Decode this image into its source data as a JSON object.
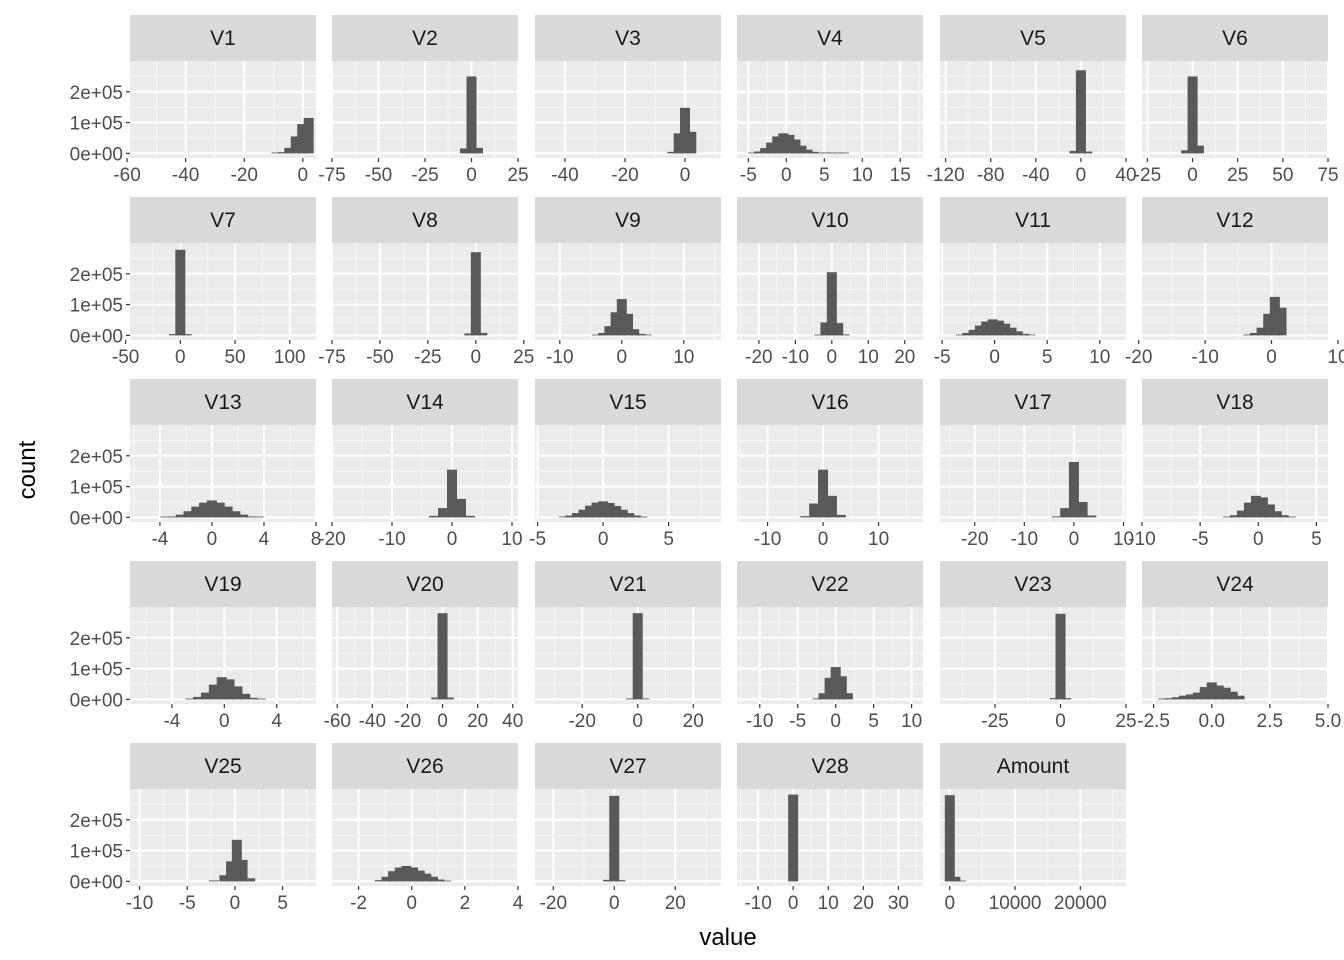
{
  "chart_data": {
    "type": "bar",
    "xlabel": "value",
    "ylabel": "count",
    "y_ticks": [
      {
        "value": 0,
        "label": "0e+00"
      },
      {
        "value": 100000,
        "label": "1e+05"
      },
      {
        "value": 200000,
        "label": "2e+05"
      }
    ],
    "ylim": [
      -15000,
      300000
    ],
    "colors": {
      "bar": "#595959",
      "panel": "#ebebeb",
      "grid_major": "#ffffff",
      "strip": "#d9d9d9"
    },
    "panels": [
      {
        "name": "V1",
        "xlim": [
          -59,
          4.5
        ],
        "ticks": [
          -60,
          -40,
          -20,
          0
        ],
        "bars": [
          [
            -9,
            1000
          ],
          [
            -6.8,
            4000
          ],
          [
            -4.6,
            18000
          ],
          [
            -2.4,
            55000
          ],
          [
            -0.2,
            95000
          ],
          [
            2,
            115000
          ]
        ]
      },
      {
        "name": "V2",
        "xlim": [
          -75,
          25
        ],
        "ticks": [
          -75,
          -50,
          -25,
          0,
          25
        ],
        "bars": [
          [
            -3.5,
            16000
          ],
          [
            0,
            250000
          ],
          [
            3.5,
            18000
          ]
        ]
      },
      {
        "name": "V3",
        "xlim": [
          -50,
          12
        ],
        "ticks": [
          -40,
          -20,
          0
        ],
        "bars": [
          [
            -4.2,
            5000
          ],
          [
            -2.1,
            65000
          ],
          [
            0,
            148000
          ],
          [
            2.1,
            70000
          ]
        ]
      },
      {
        "name": "V4",
        "xlim": [
          -6.5,
          18
        ],
        "ticks": [
          -5,
          0,
          5,
          10,
          15
        ],
        "bars": [
          [
            -4.4,
            2000
          ],
          [
            -3.6,
            6000
          ],
          [
            -2.8,
            17000
          ],
          [
            -2.0,
            35000
          ],
          [
            -1.2,
            55000
          ],
          [
            -0.4,
            65000
          ],
          [
            0.4,
            60000
          ],
          [
            1.2,
            45000
          ],
          [
            2.0,
            25000
          ],
          [
            2.8,
            12000
          ],
          [
            3.6,
            5000
          ],
          [
            4.4,
            2000
          ],
          [
            5.2,
            800
          ],
          [
            6.0,
            300
          ],
          [
            6.8,
            150
          ],
          [
            7.6,
            60
          ]
        ]
      },
      {
        "name": "V5",
        "xlim": [
          -125,
          40
        ],
        "ticks": [
          -120,
          -80,
          -40,
          0,
          40
        ],
        "bars": [
          [
            -5.7,
            8000
          ],
          [
            0,
            270000
          ],
          [
            5.7,
            6000
          ]
        ]
      },
      {
        "name": "V6",
        "xlim": [
          -28,
          75
        ],
        "ticks": [
          -25,
          0,
          25,
          50,
          75
        ],
        "bars": [
          [
            -3.5,
            10000
          ],
          [
            0,
            250000
          ],
          [
            3.5,
            25000
          ]
        ]
      },
      {
        "name": "V7",
        "xlim": [
          -46,
          124
        ],
        "ticks": [
          -50,
          0,
          50,
          100
        ],
        "bars": [
          [
            -5.8,
            4000
          ],
          [
            0,
            278000
          ],
          [
            5.8,
            4000
          ]
        ]
      },
      {
        "name": "V8",
        "xlim": [
          -75,
          22
        ],
        "ticks": [
          -75,
          -50,
          -25,
          0,
          25
        ],
        "bars": [
          [
            -3.4,
            6000
          ],
          [
            0,
            270000
          ],
          [
            3.4,
            8000
          ]
        ]
      },
      {
        "name": "V9",
        "xlim": [
          -14,
          16
        ],
        "ticks": [
          -10,
          0,
          10
        ],
        "bars": [
          [
            -4,
            2000
          ],
          [
            -3,
            8000
          ],
          [
            -2,
            30000
          ],
          [
            -1,
            75000
          ],
          [
            0,
            118000
          ],
          [
            1,
            70000
          ],
          [
            2,
            20000
          ],
          [
            3,
            5000
          ],
          [
            4,
            1000
          ]
        ]
      },
      {
        "name": "V10",
        "xlim": [
          -26,
          25
        ],
        "ticks": [
          -20,
          -10,
          0,
          10,
          20
        ],
        "bars": [
          [
            -3.5,
            2000
          ],
          [
            -1.75,
            42000
          ],
          [
            0,
            205000
          ],
          [
            1.75,
            40000
          ],
          [
            3.5,
            3000
          ]
        ]
      },
      {
        "name": "V11",
        "xlim": [
          -5.2,
          12.5
        ],
        "ticks": [
          -5,
          0,
          5,
          10
        ],
        "bars": [
          [
            -3.2,
            2000
          ],
          [
            -2.6,
            8000
          ],
          [
            -2.0,
            18000
          ],
          [
            -1.4,
            32000
          ],
          [
            -0.8,
            45000
          ],
          [
            -0.2,
            52000
          ],
          [
            0.4,
            48000
          ],
          [
            1.0,
            38000
          ],
          [
            1.6,
            25000
          ],
          [
            2.2,
            13000
          ],
          [
            2.8,
            5000
          ],
          [
            3.4,
            1500
          ]
        ]
      },
      {
        "name": "V12",
        "xlim": [
          -19.5,
          8.5
        ],
        "ticks": [
          -20,
          -10,
          0,
          10
        ],
        "bars": [
          [
            -3.5,
            2000
          ],
          [
            -2.5,
            8000
          ],
          [
            -1.5,
            25000
          ],
          [
            -0.5,
            70000
          ],
          [
            0.5,
            125000
          ],
          [
            1.5,
            90000
          ]
        ]
      },
      {
        "name": "V13",
        "xlim": [
          -6.3,
          8
        ],
        "ticks": [
          -4,
          0,
          4,
          8
        ],
        "bars": [
          [
            -3.6,
            1000
          ],
          [
            -3.0,
            3000
          ],
          [
            -2.4,
            9000
          ],
          [
            -1.8,
            20000
          ],
          [
            -1.2,
            35000
          ],
          [
            -0.6,
            48000
          ],
          [
            0.0,
            55000
          ],
          [
            0.6,
            48000
          ],
          [
            1.2,
            35000
          ],
          [
            1.8,
            20000
          ],
          [
            2.4,
            9000
          ],
          [
            3.0,
            3000
          ],
          [
            3.6,
            1000
          ]
        ]
      },
      {
        "name": "V14",
        "xlim": [
          -20,
          11
        ],
        "ticks": [
          -20,
          -10,
          0,
          10
        ],
        "bars": [
          [
            -3,
            5000
          ],
          [
            -1.5,
            30000
          ],
          [
            0,
            155000
          ],
          [
            1.5,
            60000
          ],
          [
            3,
            5000
          ]
        ]
      },
      {
        "name": "V15",
        "xlim": [
          -5.2,
          9
        ],
        "ticks": [
          -5,
          0,
          5
        ],
        "bars": [
          [
            -3.0,
            2000
          ],
          [
            -2.5,
            6000
          ],
          [
            -2.0,
            14000
          ],
          [
            -1.5,
            25000
          ],
          [
            -1.0,
            38000
          ],
          [
            -0.5,
            48000
          ],
          [
            0.0,
            52000
          ],
          [
            0.5,
            47000
          ],
          [
            1.0,
            37000
          ],
          [
            1.5,
            25000
          ],
          [
            2.0,
            14000
          ],
          [
            2.5,
            6000
          ],
          [
            3.0,
            2000
          ]
        ]
      },
      {
        "name": "V16",
        "xlim": [
          -15.5,
          18
        ],
        "ticks": [
          -10,
          0,
          10
        ],
        "bars": [
          [
            -3.2,
            4000
          ],
          [
            -1.6,
            45000
          ],
          [
            0,
            155000
          ],
          [
            1.6,
            70000
          ],
          [
            3.2,
            8000
          ]
        ]
      },
      {
        "name": "V17",
        "xlim": [
          -27,
          10.5
        ],
        "ticks": [
          -20,
          -10,
          0,
          10
        ],
        "bars": [
          [
            -3.5,
            3000
          ],
          [
            -1.75,
            30000
          ],
          [
            0,
            180000
          ],
          [
            1.75,
            50000
          ],
          [
            3.5,
            6000
          ]
        ]
      },
      {
        "name": "V18",
        "xlim": [
          -10,
          6
        ],
        "ticks": [
          -10,
          -5,
          0,
          5
        ],
        "bars": [
          [
            -2.6,
            2000
          ],
          [
            -2.0,
            7000
          ],
          [
            -1.4,
            22000
          ],
          [
            -0.8,
            48000
          ],
          [
            -0.2,
            70000
          ],
          [
            0.4,
            65000
          ],
          [
            1.0,
            42000
          ],
          [
            1.6,
            20000
          ],
          [
            2.2,
            7000
          ],
          [
            2.8,
            2000
          ]
        ]
      },
      {
        "name": "V19",
        "xlim": [
          -7.2,
          7
        ],
        "ticks": [
          -4,
          0,
          4
        ],
        "bars": [
          [
            -2.6,
            2000
          ],
          [
            -2.0,
            8000
          ],
          [
            -1.4,
            22000
          ],
          [
            -0.8,
            48000
          ],
          [
            -0.2,
            72000
          ],
          [
            0.4,
            65000
          ],
          [
            1.0,
            42000
          ],
          [
            1.6,
            18000
          ],
          [
            2.2,
            5000
          ],
          [
            2.8,
            1500
          ]
        ]
      },
      {
        "name": "V20",
        "xlim": [
          -63,
          43
        ],
        "ticks": [
          -60,
          -40,
          -20,
          0,
          20,
          40
        ],
        "bars": [
          [
            -3.6,
            6000
          ],
          [
            0,
            280000
          ],
          [
            3.6,
            6000
          ]
        ]
      },
      {
        "name": "V21",
        "xlim": [
          -37,
          30
        ],
        "ticks": [
          -20,
          0,
          20
        ],
        "bars": [
          [
            -2.4,
            3000
          ],
          [
            0,
            280000
          ],
          [
            2.4,
            3000
          ]
        ]
      },
      {
        "name": "V22",
        "xlim": [
          -13,
          11.5
        ],
        "ticks": [
          -10,
          -5,
          0,
          5,
          10
        ],
        "bars": [
          [
            -2.4,
            3000
          ],
          [
            -1.6,
            20000
          ],
          [
            -0.8,
            70000
          ],
          [
            0,
            105000
          ],
          [
            0.8,
            75000
          ],
          [
            1.6,
            20000
          ]
        ]
      },
      {
        "name": "V23",
        "xlim": [
          -46,
          25
        ],
        "ticks": [
          -25,
          0,
          25
        ],
        "bars": [
          [
            -2.2,
            4000
          ],
          [
            0,
            278000
          ],
          [
            2.2,
            4000
          ]
        ]
      },
      {
        "name": "V24",
        "xlim": [
          -3,
          5
        ],
        "ticks": [
          -2.5,
          0.0,
          2.5,
          5.0
        ],
        "bars": [
          [
            -2.1,
            2000
          ],
          [
            -1.8,
            4000
          ],
          [
            -1.5,
            7000
          ],
          [
            -1.2,
            12000
          ],
          [
            -0.9,
            16000
          ],
          [
            -0.6,
            22000
          ],
          [
            -0.3,
            40000
          ],
          [
            0.0,
            55000
          ],
          [
            0.3,
            45000
          ],
          [
            0.6,
            38000
          ],
          [
            0.9,
            25000
          ],
          [
            1.2,
            12000
          ]
        ]
      },
      {
        "name": "V25",
        "xlim": [
          -11,
          8.5
        ],
        "ticks": [
          -10,
          -5,
          0,
          5
        ],
        "bars": [
          [
            -2.2,
            3000
          ],
          [
            -1.1,
            20000
          ],
          [
            -0.4,
            65000
          ],
          [
            0.2,
            135000
          ],
          [
            0.8,
            70000
          ],
          [
            1.6,
            10000
          ]
        ]
      },
      {
        "name": "V26",
        "xlim": [
          -3,
          4
        ],
        "ticks": [
          -2,
          0,
          2,
          4
        ],
        "bars": [
          [
            -1.2,
            4000
          ],
          [
            -0.95,
            15000
          ],
          [
            -0.7,
            33000
          ],
          [
            -0.45,
            45000
          ],
          [
            -0.2,
            50000
          ],
          [
            0.05,
            45000
          ],
          [
            0.3,
            35000
          ],
          [
            0.55,
            25000
          ],
          [
            0.8,
            15000
          ],
          [
            1.05,
            6000
          ],
          [
            1.3,
            2000
          ]
        ]
      },
      {
        "name": "V27",
        "xlim": [
          -26,
          35
        ],
        "ticks": [
          -20,
          0,
          20
        ],
        "bars": [
          [
            -2,
            5000
          ],
          [
            0,
            278000
          ],
          [
            2,
            4000
          ]
        ]
      },
      {
        "name": "V28",
        "xlim": [
          -16,
          37
        ],
        "ticks": [
          -10,
          0,
          10,
          20,
          30
        ],
        "bars": [
          [
            0,
            282000
          ]
        ]
      },
      {
        "name": "Amount",
        "xlim": [
          -1500,
          27000
        ],
        "ticks": [
          0,
          10000,
          20000
        ],
        "tick_labels": [
          "0",
          "10000",
          "20000"
        ],
        "bars": [
          [
            0,
            280000
          ],
          [
            850,
            15000
          ],
          [
            1700,
            2000
          ]
        ]
      }
    ]
  }
}
